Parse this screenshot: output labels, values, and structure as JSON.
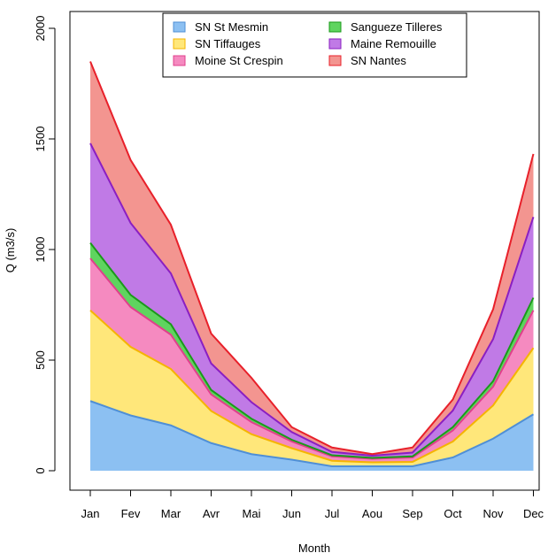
{
  "chart_data": {
    "type": "area",
    "stacked": true,
    "xlabel": "Month",
    "ylabel": "Q (m3/s)",
    "categories": [
      "Jan",
      "Fev",
      "Mar",
      "Avr",
      "Mai",
      "Jun",
      "Jul",
      "Aou",
      "Sep",
      "Oct",
      "Nov",
      "Dec"
    ],
    "ylim": [
      0,
      2000
    ],
    "yticks": [
      0,
      500,
      1000,
      1500,
      2000
    ],
    "legend_position": "top",
    "series": [
      {
        "name": "SN St Mesmin",
        "values": [
          315,
          250,
          205,
          125,
          75,
          50,
          20,
          20,
          20,
          60,
          145,
          255
        ],
        "fill": "#8CC0F2",
        "line": "#4F8FD6"
      },
      {
        "name": "SN Tiffauges",
        "values": [
          410,
          310,
          255,
          145,
          90,
          52,
          25,
          18,
          20,
          72,
          150,
          300
        ],
        "fill": "#FFE77A",
        "line": "#F5B400"
      },
      {
        "name": "Moine St Crespin",
        "values": [
          235,
          180,
          155,
          75,
          55,
          30,
          20,
          16,
          20,
          50,
          85,
          170
        ],
        "fill": "#F58AC0",
        "line": "#E0408C"
      },
      {
        "name": "Sangueze Tilleres",
        "values": [
          70,
          55,
          47,
          20,
          15,
          8,
          5,
          4,
          5,
          15,
          25,
          57
        ],
        "fill": "#5FD45F",
        "line": "#1A9A1A"
      },
      {
        "name": "Maine Remouille",
        "values": [
          450,
          325,
          230,
          120,
          75,
          35,
          15,
          10,
          17,
          75,
          190,
          365
        ],
        "fill": "#C07AE6",
        "line": "#8A1FC2"
      },
      {
        "name": "SN Nantes",
        "values": [
          370,
          285,
          220,
          135,
          110,
          22,
          20,
          7,
          23,
          50,
          135,
          285
        ],
        "fill": "#F39590",
        "line": "#E8202A"
      }
    ]
  }
}
